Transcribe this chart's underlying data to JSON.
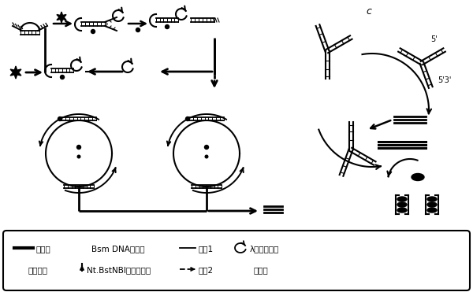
{
  "bg_color": "#ffffff",
  "line_color": "#000000",
  "legend_row1": [
    "适配体",
    "Bsm DNA聚合酶",
    "引物1",
    "λ核酸外切酶"
  ],
  "legend_row2": [
    "妥布霉素",
    "Nt.BstNBI切刻内切酶",
    "引物2",
    "血红素"
  ],
  "label_c": "c",
  "label_5p_top": "5'",
  "label_5p3p": "5'3'"
}
